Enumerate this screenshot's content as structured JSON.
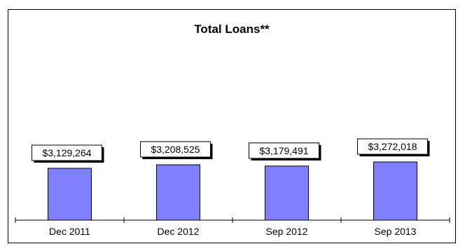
{
  "chart_data": {
    "type": "bar",
    "title": "Total Loans**",
    "categories": [
      "Dec 2011",
      "Dec 2012",
      "Sep 2012",
      "Sep 2013"
    ],
    "values": [
      3129264,
      3208525,
      3179491,
      3272018
    ],
    "data_labels": [
      "$3,129,264",
      "$3,208,525",
      "$3,179,491",
      "$3,272,018"
    ],
    "bar_color": "#8080ff",
    "axis_visible": false,
    "grid": false,
    "legend": "none"
  }
}
